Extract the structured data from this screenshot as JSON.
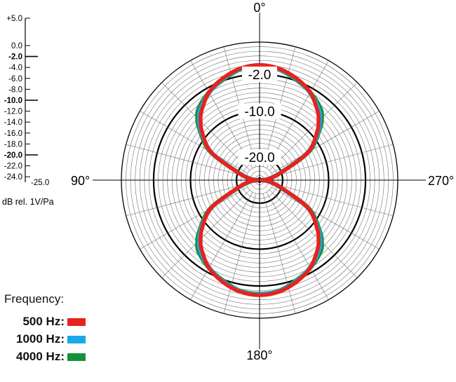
{
  "chart_data": {
    "type": "polar",
    "title": "",
    "angle_labels": [
      {
        "text": "0°",
        "angle": 0
      },
      {
        "text": "90°",
        "angle": 90
      },
      {
        "text": "180°",
        "angle": 180
      },
      {
        "text": "270°",
        "angle": 270
      }
    ],
    "radial_range_db": [
      -25,
      5
    ],
    "radial_labels": [
      {
        "text": "-2.0",
        "value": -2
      },
      {
        "text": "-10.0",
        "value": -10
      },
      {
        "text": "-20.0",
        "value": -20
      }
    ],
    "scale": {
      "unit_label": "dB rel. 1V/Pa",
      "ticks": [
        {
          "text": "+5.0",
          "value": 5,
          "bold": false
        },
        {
          "text": "0.0",
          "value": 0,
          "bold": false
        },
        {
          "text": "-2.0",
          "value": -2,
          "bold": true
        },
        {
          "text": "-4.0",
          "value": -4,
          "bold": false
        },
        {
          "text": "-6.0",
          "value": -6,
          "bold": false
        },
        {
          "text": "-8.0",
          "value": -8,
          "bold": false
        },
        {
          "text": "-10.0",
          "value": -10,
          "bold": true
        },
        {
          "text": "-12.0",
          "value": -12,
          "bold": false
        },
        {
          "text": "-14.0",
          "value": -14,
          "bold": false
        },
        {
          "text": "-16.0",
          "value": -16,
          "bold": false
        },
        {
          "text": "-18.0",
          "value": -18,
          "bold": false
        },
        {
          "text": "-20.0",
          "value": -20,
          "bold": true
        },
        {
          "text": "-22.0",
          "value": -22,
          "bold": false
        },
        {
          "text": "-24.0",
          "value": -24,
          "bold": false
        },
        {
          "text": "-25.0",
          "value": -25,
          "bold": false
        }
      ]
    },
    "grid": true,
    "legend": {
      "title": "Frequency:",
      "placement": "bottom-left"
    },
    "series": [
      {
        "name": "500 Hz:",
        "color": "#e8221c",
        "angles": [
          0,
          10,
          20,
          30,
          40,
          45,
          50,
          60,
          70,
          80,
          85,
          90,
          95,
          100,
          110,
          120,
          130,
          135,
          140,
          150,
          160,
          170,
          180
        ],
        "values": [
          0,
          -0.4,
          -1.5,
          -3.0,
          -5.4,
          -6.9,
          -8.7,
          -12.8,
          -19.8,
          -22.5,
          -23.5,
          -24.5,
          -23.5,
          -22.5,
          -19.8,
          -12.8,
          -8.7,
          -6.9,
          -5.4,
          -3.0,
          -1.5,
          -0.4,
          0
        ]
      },
      {
        "name": "1000 Hz:",
        "color": "#1aa9e8",
        "angles": [
          0,
          10,
          20,
          30,
          40,
          45,
          50,
          60,
          70,
          80,
          85,
          90,
          95,
          100,
          110,
          120,
          130,
          135,
          140,
          150,
          160,
          170,
          180
        ],
        "values": [
          0,
          -0.5,
          -1.6,
          -3.1,
          -5.0,
          -6.5,
          -8.4,
          -12.9,
          -19.9,
          -22.6,
          -23.6,
          -24.5,
          -23.6,
          -22.6,
          -19.9,
          -12.9,
          -8.4,
          -6.5,
          -5.0,
          -3.1,
          -1.6,
          -0.5,
          -0.2
        ]
      },
      {
        "name": "4000 Hz:",
        "color": "#13923a",
        "angles": [
          0,
          10,
          20,
          30,
          40,
          45,
          50,
          60,
          70,
          80,
          85,
          90,
          95,
          100,
          110,
          120,
          130,
          135,
          140,
          150,
          160,
          170,
          180
        ],
        "values": [
          -0.1,
          -0.6,
          -1.8,
          -3.0,
          -4.5,
          -5.9,
          -8.0,
          -12.6,
          -20.0,
          -22.7,
          -23.7,
          -24.5,
          -23.7,
          -22.7,
          -20.0,
          -12.6,
          -8.0,
          -5.9,
          -4.5,
          -3.0,
          -1.8,
          -0.6,
          -0.3
        ]
      }
    ]
  }
}
